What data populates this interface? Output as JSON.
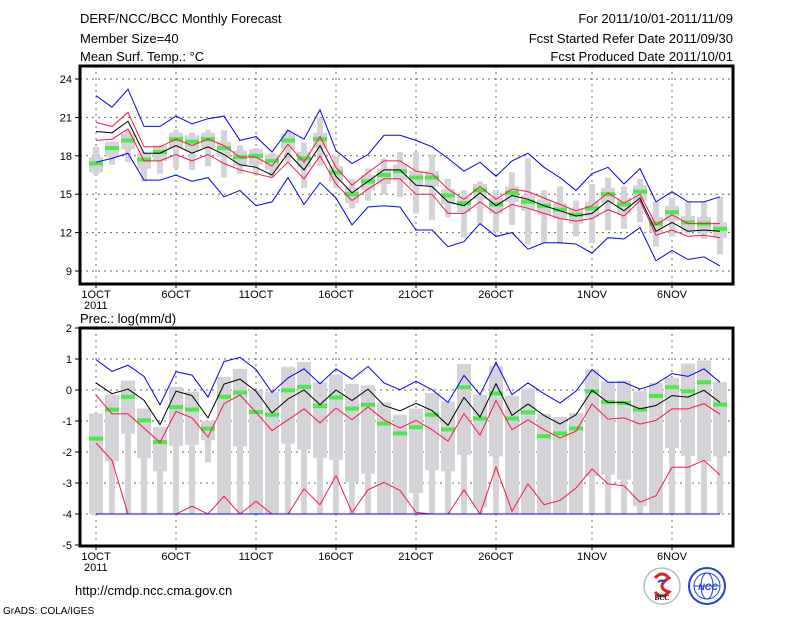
{
  "header": {
    "title": "DERF/NCC/BCC Monthly Forecast",
    "member_size": "Member Size=40",
    "variable": "Mean Surf. Temp.: °C",
    "period": "For 2011/10/01-2011/11/09",
    "start_date": "Fcst Started Refer Date 2011/09/30",
    "produced_date": "Fcst Produced Date 2011/10/01"
  },
  "footer": {
    "url": "http://cmdp.ncc.cma.gov.cn",
    "grads": "GrADS: COLA/IGES",
    "logo_bcc": "BCC",
    "logo_ncc": "NCC"
  },
  "colors": {
    "max_min": "#0000ff",
    "mean": "#000000",
    "spread": "#ff1744",
    "marker": "#4ce84c",
    "box": "#d3d3d8"
  },
  "chart_data": [
    {
      "type": "line",
      "title": "Mean Surf. Temp.: °C",
      "ylim": [
        8,
        25
      ],
      "yticks": [
        9,
        12,
        15,
        18,
        21,
        24
      ],
      "xtick_days": [
        1,
        6,
        11,
        16,
        21,
        26,
        32,
        37
      ],
      "xtick_labels": [
        "1OCT",
        "6OCT",
        "11OCT",
        "16OCT",
        "21OCT",
        "26OCT",
        "1NOV",
        "6NOV"
      ],
      "year_label": "2011",
      "grid": true,
      "days": 40,
      "series": [
        {
          "name": "max",
          "color": "#0000ff",
          "values": [
            22.7,
            21.8,
            23.2,
            20.3,
            20.3,
            21.1,
            20.5,
            20.9,
            21.1,
            19.2,
            19.5,
            18.3,
            20.0,
            19.3,
            21.6,
            18.4,
            17.4,
            18.1,
            19.6,
            19.6,
            19.2,
            18.7,
            17.8,
            16.8,
            17.5,
            16.4,
            17.6,
            18.2,
            17.1,
            16.3,
            15.3,
            16.6,
            17.1,
            15.8,
            17.0,
            14.4,
            15.2,
            14.4,
            14.4,
            14.8
          ]
        },
        {
          "name": "upper",
          "color": "#ff1744",
          "values": [
            20.6,
            20.3,
            21.4,
            18.7,
            18.7,
            19.3,
            18.8,
            19.3,
            18.8,
            17.9,
            17.9,
            17.2,
            18.9,
            17.5,
            19.5,
            17.1,
            15.7,
            16.7,
            17.6,
            17.6,
            16.8,
            16.6,
            15.4,
            14.6,
            15.6,
            14.6,
            15.4,
            15.2,
            14.7,
            14.2,
            13.7,
            14.1,
            15.1,
            14.3,
            15.0,
            12.6,
            13.4,
            12.7,
            12.7,
            12.7
          ]
        },
        {
          "name": "mean",
          "color": "#000000",
          "values": [
            19.9,
            19.8,
            20.7,
            18.2,
            18.2,
            18.8,
            18.2,
            18.7,
            18.1,
            17.3,
            17.1,
            16.5,
            18.2,
            16.9,
            18.8,
            16.4,
            15.1,
            16.0,
            16.9,
            16.9,
            15.7,
            15.6,
            14.4,
            14.1,
            15.1,
            14.1,
            14.9,
            14.6,
            14.1,
            13.7,
            13.3,
            13.5,
            14.5,
            13.7,
            14.7,
            12.1,
            12.8,
            12.1,
            12.2,
            12.1
          ]
        },
        {
          "name": "lower",
          "color": "#ff1744",
          "values": [
            19.2,
            19.3,
            20.1,
            17.6,
            17.6,
            18.1,
            17.6,
            18.1,
            17.4,
            16.9,
            16.6,
            16.3,
            17.5,
            16.2,
            18.0,
            15.8,
            14.5,
            15.4,
            16.2,
            16.2,
            15.0,
            15.0,
            13.5,
            13.5,
            14.4,
            13.5,
            14.2,
            13.9,
            13.5,
            13.1,
            12.9,
            13.1,
            13.8,
            13.3,
            14.5,
            11.8,
            12.2,
            11.7,
            11.8,
            11.6
          ]
        },
        {
          "name": "min",
          "color": "#0000ff",
          "values": [
            17.5,
            17.8,
            18.2,
            16.1,
            16.1,
            16.5,
            16.0,
            16.3,
            14.8,
            15.3,
            14.1,
            14.4,
            16.3,
            14.2,
            15.9,
            14.7,
            12.6,
            14.0,
            14.1,
            14.0,
            12.2,
            12.2,
            10.9,
            11.3,
            12.7,
            11.7,
            12.0,
            10.7,
            11.2,
            11.2,
            11.1,
            10.4,
            11.6,
            11.5,
            12.4,
            9.8,
            10.6,
            9.9,
            10.1,
            9.4
          ]
        }
      ],
      "markers": [
        17.4,
        18.6,
        19.2,
        17.7,
        18.3,
        19.3,
        19.1,
        19.3,
        18.6,
        17.9,
        18.0,
        17.6,
        19.2,
        17.8,
        19.3,
        16.7,
        15.0,
        16.0,
        16.5,
        16.8,
        16.3,
        16.3,
        14.9,
        14.3,
        15.3,
        14.2,
        15.1,
        14.4,
        14.1,
        13.8,
        13.4,
        13.9,
        15.0,
        14.2,
        15.2,
        12.7,
        13.6,
        12.8,
        12.7,
        12.3
      ],
      "box": {
        "hi": [
          18.7,
          19.0,
          20.0,
          18.3,
          18.8,
          20.0,
          19.8,
          20.0,
          20.0,
          18.8,
          18.6,
          18.2,
          20.0,
          19.0,
          21.0,
          18.0,
          16.2,
          17.0,
          17.8,
          18.3,
          18.3,
          18.1,
          16.2,
          15.3,
          16.0,
          15.3,
          16.7,
          17.8,
          15.3,
          15.6,
          14.5,
          15.8,
          16.3,
          15.6,
          16.2,
          14.4,
          14.7,
          14.4,
          14.4,
          14.8
        ],
        "q3": [
          17.9,
          19.1,
          19.7,
          18.2,
          18.8,
          19.8,
          19.6,
          19.8,
          19.1,
          18.4,
          18.5,
          18.1,
          19.7,
          18.3,
          19.8,
          17.2,
          15.5,
          16.5,
          17.0,
          17.3,
          16.8,
          16.8,
          15.4,
          14.8,
          15.8,
          14.7,
          15.6,
          14.9,
          14.6,
          14.3,
          13.9,
          14.4,
          15.5,
          14.7,
          15.7,
          13.2,
          14.1,
          13.3,
          13.2,
          12.8
        ],
        "q1": [
          16.7,
          17.9,
          18.5,
          17.0,
          17.6,
          18.6,
          18.4,
          18.6,
          17.9,
          17.2,
          17.3,
          16.9,
          18.5,
          17.1,
          18.6,
          16.0,
          14.3,
          15.3,
          15.8,
          16.1,
          15.6,
          15.6,
          14.2,
          13.6,
          14.6,
          13.5,
          14.4,
          13.7,
          13.4,
          13.1,
          12.7,
          13.2,
          14.3,
          13.5,
          14.5,
          12.0,
          12.9,
          12.1,
          12.0,
          11.6
        ],
        "lo": [
          16.5,
          17.3,
          17.5,
          16.0,
          16.6,
          17.0,
          16.9,
          17.2,
          16.3,
          16.6,
          16.5,
          16.3,
          17.5,
          15.5,
          17.2,
          15.5,
          13.9,
          14.5,
          15.0,
          14.8,
          13.5,
          13.0,
          13.2,
          11.6,
          12.7,
          12.0,
          12.6,
          11.1,
          11.2,
          11.1,
          11.7,
          11.2,
          12.2,
          12.3,
          12.8,
          10.9,
          11.7,
          11.9,
          11.5,
          10.3
        ]
      }
    },
    {
      "type": "line",
      "title": "Prec.: log(mm/d)",
      "ylim": [
        -5,
        2
      ],
      "yticks": [
        -5,
        -4,
        -3,
        -2,
        -1,
        0,
        1,
        2
      ],
      "xtick_days": [
        1,
        6,
        11,
        16,
        21,
        26,
        32,
        37
      ],
      "xtick_labels": [
        "1OCT",
        "6OCT",
        "11OCT",
        "16OCT",
        "21OCT",
        "26OCT",
        "1NOV",
        "6NOV"
      ],
      "year_label": "2011",
      "grid": true,
      "days": 40,
      "series": [
        {
          "name": "max",
          "color": "#0000ff",
          "values": [
            0.98,
            0.6,
            0.8,
            0.44,
            -0.48,
            0.59,
            0.48,
            -0.23,
            0.92,
            1.05,
            0.66,
            -0.08,
            0.39,
            0.68,
            0.2,
            0.68,
            0.35,
            0.76,
            0.23,
            0.01,
            0.28,
            0.01,
            -0.4,
            0.47,
            -0.15,
            0.89,
            -0.15,
            0.23,
            -0.12,
            -0.42,
            -0.04,
            0.66,
            0.25,
            0.25,
            0.03,
            0.2,
            0.53,
            0.44,
            0.68,
            0.25
          ]
        },
        {
          "name": "upper",
          "color": "#ff1744",
          "values": [
            -0.16,
            -0.77,
            -0.77,
            -1.23,
            -1.69,
            -0.69,
            -0.9,
            -1.52,
            -0.44,
            -0.16,
            -0.72,
            -1.31,
            -0.96,
            -0.61,
            -1.06,
            -0.58,
            -0.96,
            -0.55,
            -0.96,
            -1.23,
            -0.98,
            -1.28,
            -1.65,
            -0.76,
            -1.45,
            -0.34,
            -1.28,
            -0.96,
            -1.28,
            -1.55,
            -1.33,
            -0.45,
            -0.94,
            -0.9,
            -1.1,
            -0.98,
            -0.61,
            -0.61,
            -0.44,
            -0.78
          ]
        },
        {
          "name": "mean",
          "color": "#000000",
          "values": [
            0.23,
            -0.12,
            0.03,
            -0.33,
            -1.12,
            -0.04,
            -0.18,
            -0.9,
            0.19,
            0.35,
            -0.04,
            -0.74,
            -0.29,
            0,
            -0.47,
            0,
            -0.34,
            0.03,
            -0.5,
            -0.67,
            -0.43,
            -0.66,
            -1.14,
            -0.24,
            -0.87,
            0.2,
            -0.82,
            -0.45,
            -0.82,
            -1.1,
            -0.8,
            -0.01,
            -0.4,
            -0.4,
            -0.61,
            -0.5,
            -0.18,
            -0.23,
            -0.01,
            -0.4
          ]
        },
        {
          "name": "lower",
          "color": "#ff1744",
          "values": [
            -1.71,
            -2.27,
            -4,
            -4,
            -4,
            -4,
            -3.75,
            -4,
            -3.43,
            -4,
            -3.59,
            -4,
            -4,
            -3.19,
            -3.7,
            -2.76,
            -3.95,
            -3.22,
            -2.98,
            -3.24,
            -3.95,
            -4,
            -4,
            -3.22,
            -4,
            -2.48,
            -3.91,
            -3.03,
            -3.7,
            -3.56,
            -3.16,
            -2.55,
            -3.03,
            -3.09,
            -3.62,
            -3.41,
            -2.49,
            -2.49,
            -2.27,
            -2.74
          ]
        },
        {
          "name": "min",
          "color": "#0000ff",
          "values": [
            -4,
            -4,
            -4,
            -4,
            -4,
            -4,
            -4,
            -4,
            -4,
            -4,
            -4,
            -4,
            -4,
            -4,
            -4,
            -4,
            -4,
            -4,
            -4,
            -4,
            -4,
            -4,
            -4,
            -4,
            -4,
            -4,
            -4,
            -4,
            -4,
            -4,
            -4,
            -4,
            -4,
            -4,
            -4,
            -4,
            -4,
            -4,
            -4,
            -4
          ]
        }
      ],
      "markers": [
        -1.57,
        -0.63,
        -0.22,
        -0.98,
        -1.68,
        -0.55,
        -0.63,
        -1.25,
        -0.22,
        -0.08,
        -0.71,
        -0.8,
        -0.01,
        0.1,
        -0.52,
        -0.24,
        -0.6,
        -0.48,
        -1.08,
        -1.4,
        -1.2,
        -0.8,
        -1.27,
        0.09,
        -0.92,
        -0.11,
        -0.92,
        -0.72,
        -1.49,
        -1.4,
        -1.24,
        -0.04,
        -0.39,
        -0.42,
        -0.63,
        -0.19,
        0.09,
        -0.04,
        0.25,
        -0.47
      ],
      "box": {
        "hi": [
          -0.76,
          -0.15,
          0.3,
          -0.6,
          -1.2,
          0.1,
          -0.05,
          -1.0,
          0.42,
          0.68,
          0.0,
          -0.05,
          0.75,
          0.9,
          0.25,
          0.5,
          0.2,
          0.15,
          -0.4,
          -0.8,
          -0.6,
          -0.1,
          -0.37,
          0.84,
          -0.15,
          0.78,
          -0.18,
          0.05,
          -0.77,
          -0.87,
          -0.74,
          0.66,
          0.27,
          0.3,
          -0.04,
          0.23,
          0.39,
          0.85,
          0.95,
          0.25
        ],
        "q3": [
          -0.76,
          -0.15,
          0.3,
          -0.6,
          -1.2,
          0.1,
          -0.05,
          -1.0,
          0.42,
          0.68,
          0.0,
          -0.05,
          0.75,
          0.9,
          0.25,
          0.5,
          0.2,
          0.15,
          -0.4,
          -0.8,
          -0.6,
          -0.1,
          -0.37,
          0.84,
          -0.15,
          0.78,
          -0.18,
          0.05,
          -0.77,
          -0.87,
          -0.74,
          0.66,
          0.27,
          0.3,
          -0.04,
          0.23,
          0.39,
          0.85,
          0.95,
          0.25
        ],
        "q1": [
          -4,
          -2.3,
          -1.41,
          -2.2,
          -2.62,
          -1.8,
          -1.76,
          -1.62,
          -4,
          -1.82,
          -4,
          -4,
          -1.73,
          -1.92,
          -2.19,
          -2.25,
          -2.97,
          -2.7,
          -4,
          -4,
          -3.32,
          -2.59,
          -2.62,
          -2.09,
          -3.8,
          -2.14,
          -4,
          -4,
          -4,
          -4,
          -4,
          -2.78,
          -2.73,
          -2.89,
          -3.75,
          -4,
          -1.87,
          -2.12,
          -2.3,
          -2.14
        ],
        "lo": [
          -4,
          -4,
          -4,
          -4,
          -4,
          -4,
          -4,
          -2.33,
          -4,
          -4,
          -4,
          -4,
          -4,
          -4,
          -4,
          -4,
          -4,
          -4,
          -4,
          -4,
          -4,
          -4,
          -4,
          -4,
          -4,
          -4,
          -4,
          -4,
          -4,
          -4,
          -4,
          -4,
          -4,
          -4,
          -4,
          -4,
          -4,
          -4,
          -4,
          -4
        ]
      }
    }
  ]
}
